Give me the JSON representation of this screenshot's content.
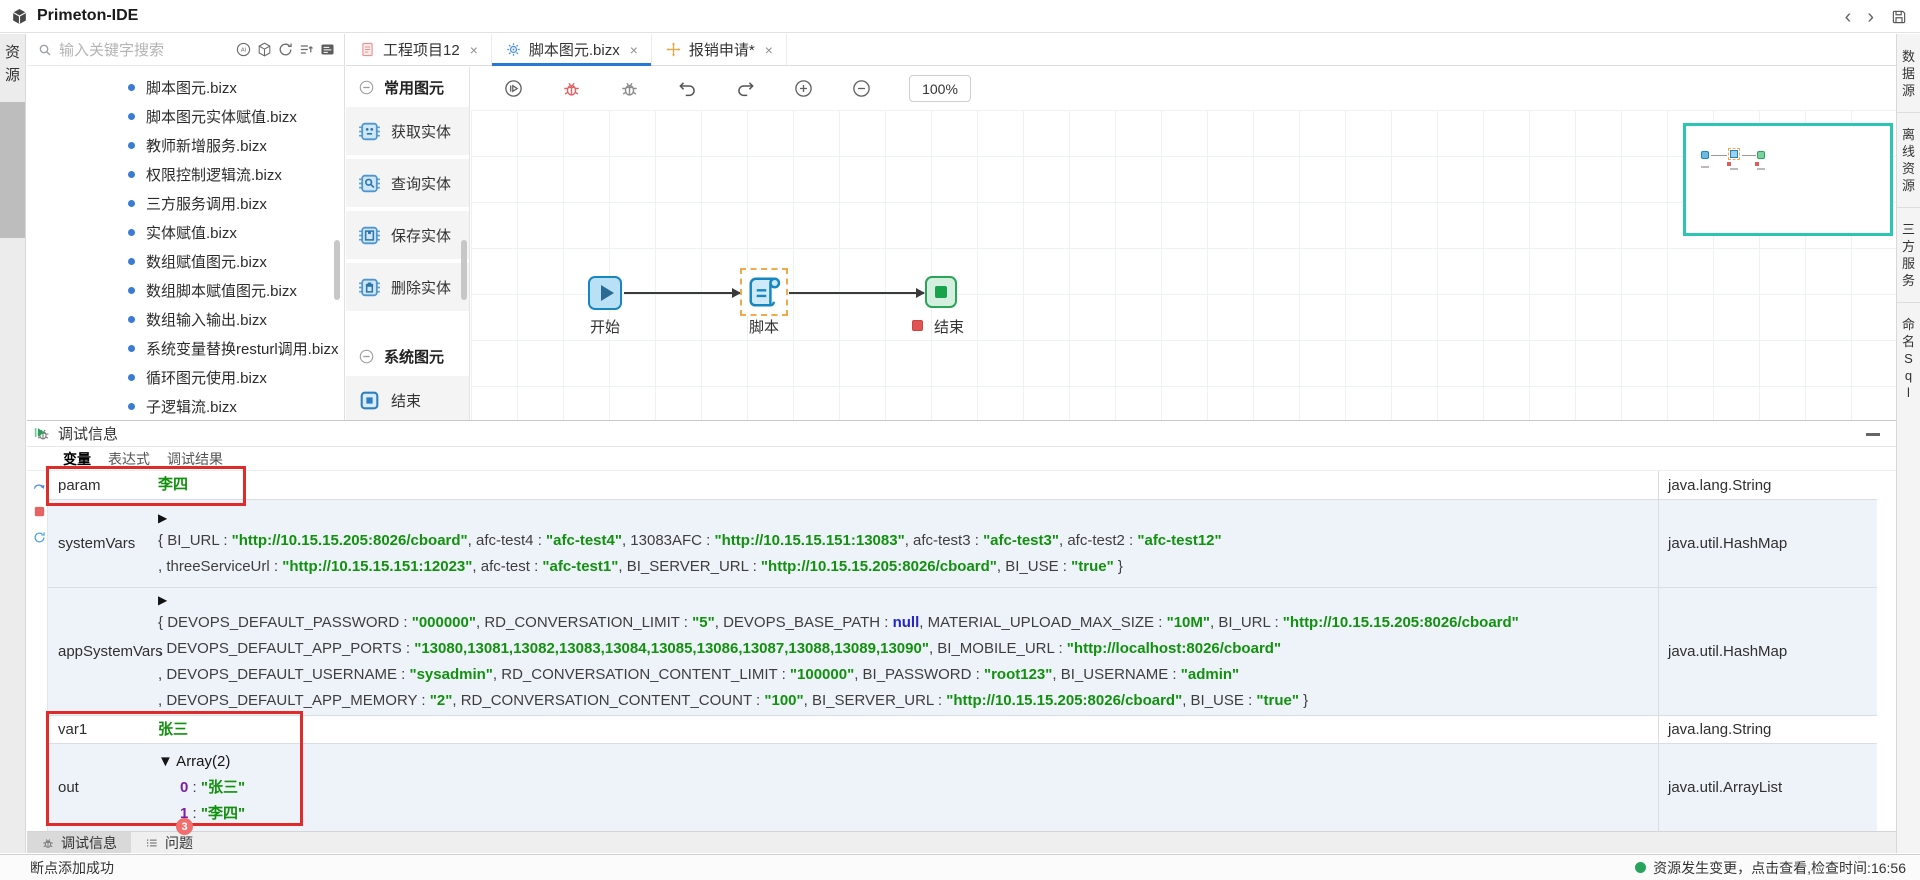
{
  "window": {
    "title": "Primeton-IDE",
    "back_glyph": "‹",
    "forward_glyph": "›"
  },
  "left_rail": {
    "label": "资源"
  },
  "right_rail": {
    "items": [
      "数据源",
      "离线资源",
      "三方服务",
      "命名Sql"
    ]
  },
  "explorer": {
    "search_placeholder": "输入关键字搜索",
    "tool_icons": [
      "ai",
      "cube",
      "refresh",
      "sort",
      "card"
    ],
    "files": [
      "脚本图元.bizx",
      "脚本图元实体赋值.bizx",
      "教师新增服务.bizx",
      "权限控制逻辑流.bizx",
      "三方服务调用.bizx",
      "实体赋值.bizx",
      "数组赋值图元.bizx",
      "数组脚本赋值图元.bizx",
      "数组输入输出.bizx",
      "系统变量替换resturl调用.bizx",
      "循环图元使用.bizx",
      "子逻辑流.bizx"
    ]
  },
  "tabs": [
    {
      "label": "工程项目12",
      "icon": "doc",
      "close": "×",
      "active": false
    },
    {
      "label": "脚本图元.bizx",
      "icon": "gear",
      "close": "×",
      "active": true
    },
    {
      "label": "报销申请*",
      "icon": "move",
      "close": "×",
      "active": false
    }
  ],
  "palette": {
    "sections": [
      {
        "title": "常用图元",
        "items": [
          {
            "label": "获取实体",
            "icon": "chipface"
          },
          {
            "label": "查询实体",
            "icon": "chipsearch"
          },
          {
            "label": "保存实体",
            "icon": "chipsave"
          },
          {
            "label": "删除实体",
            "icon": "chipdelete"
          }
        ]
      },
      {
        "title": "系统图元",
        "items": [
          {
            "label": "结束",
            "icon": "endsq"
          }
        ]
      }
    ]
  },
  "canvas": {
    "toolbar_icons": [
      "run",
      "debug-run",
      "step-debug",
      "undo",
      "redo",
      "zoom-in",
      "zoom-out"
    ],
    "zoom_level": "100%",
    "nodes": [
      {
        "label": "开始"
      },
      {
        "label": "脚本"
      },
      {
        "label": "结束"
      }
    ]
  },
  "debug": {
    "title": "调试信息",
    "tabs": [
      "变量",
      "表达式",
      "调试结果"
    ],
    "active_tab": "变量",
    "rows": [
      {
        "name": "param",
        "type": "java.lang.String",
        "lines": [
          {
            "seg": [
              {
                "c": "v",
                "t": "李四"
              }
            ]
          }
        ]
      },
      {
        "name": "systemVars",
        "type": "java.util.HashMap",
        "exp": "▶",
        "lines": [
          {
            "seg": [
              {
                "c": "p",
                "t": "{ "
              },
              {
                "c": "k",
                "t": "BI_URL : "
              },
              {
                "c": "v",
                "t": "\"http://10.15.15.205:8026/cboard\""
              },
              {
                "c": "p",
                "t": ",  "
              },
              {
                "c": "k",
                "t": "afc-test4 : "
              },
              {
                "c": "v",
                "t": "\"afc-test4\""
              },
              {
                "c": "p",
                "t": ",  "
              },
              {
                "c": "k",
                "t": "13083AFC : "
              },
              {
                "c": "v",
                "t": "\"http://10.15.15.151:13083\""
              },
              {
                "c": "p",
                "t": ",  "
              },
              {
                "c": "k",
                "t": "afc-test3 : "
              },
              {
                "c": "v",
                "t": "\"afc-test3\""
              },
              {
                "c": "p",
                "t": ",  "
              },
              {
                "c": "k",
                "t": "afc-test2 : "
              },
              {
                "c": "v",
                "t": "\"afc-test12\""
              }
            ]
          },
          {
            "seg": [
              {
                "c": "p",
                "t": ",  "
              },
              {
                "c": "k",
                "t": "threeServiceUrl : "
              },
              {
                "c": "v",
                "t": "\"http://10.15.15.151:12023\""
              },
              {
                "c": "p",
                "t": ",  "
              },
              {
                "c": "k",
                "t": "afc-test : "
              },
              {
                "c": "v",
                "t": "\"afc-test1\""
              },
              {
                "c": "p",
                "t": ",  "
              },
              {
                "c": "k",
                "t": "BI_SERVER_URL : "
              },
              {
                "c": "v",
                "t": "\"http://10.15.15.205:8026/cboard\""
              },
              {
                "c": "p",
                "t": ",  "
              },
              {
                "c": "k",
                "t": "BI_USE : "
              },
              {
                "c": "v",
                "t": "\"true\""
              },
              {
                "c": "p",
                "t": " }"
              }
            ]
          }
        ]
      },
      {
        "name": "appSystemVars",
        "type": "java.util.HashMap",
        "exp": "▶",
        "lines": [
          {
            "seg": [
              {
                "c": "p",
                "t": "{ "
              },
              {
                "c": "k",
                "t": "DEVOPS_DEFAULT_PASSWORD : "
              },
              {
                "c": "v",
                "t": "\"000000\""
              },
              {
                "c": "p",
                "t": ",  "
              },
              {
                "c": "k",
                "t": "RD_CONVERSATION_LIMIT : "
              },
              {
                "c": "v",
                "t": "\"5\""
              },
              {
                "c": "p",
                "t": ",  "
              },
              {
                "c": "k",
                "t": "DEVOPS_BASE_PATH : "
              },
              {
                "c": "n",
                "t": "null"
              },
              {
                "c": "p",
                "t": ",  "
              },
              {
                "c": "k",
                "t": "MATERIAL_UPLOAD_MAX_SIZE : "
              },
              {
                "c": "v",
                "t": "\"10M\""
              },
              {
                "c": "p",
                "t": ",  "
              },
              {
                "c": "k",
                "t": "BI_URL : "
              },
              {
                "c": "v",
                "t": "\"http://10.15.15.205:8026/cboard\""
              }
            ]
          },
          {
            "seg": [
              {
                "c": "p",
                "t": ",  "
              },
              {
                "c": "k",
                "t": "DEVOPS_DEFAULT_APP_PORTS : "
              },
              {
                "c": "v",
                "t": "\"13080,13081,13082,13083,13084,13085,13086,13087,13088,13089,13090\""
              },
              {
                "c": "p",
                "t": ",  "
              },
              {
                "c": "k",
                "t": "BI_MOBILE_URL : "
              },
              {
                "c": "v",
                "t": "\"http://localhost:8026/cboard\""
              }
            ]
          },
          {
            "seg": [
              {
                "c": "p",
                "t": ",  "
              },
              {
                "c": "k",
                "t": "DEVOPS_DEFAULT_USERNAME : "
              },
              {
                "c": "v",
                "t": "\"sysadmin\""
              },
              {
                "c": "p",
                "t": ",  "
              },
              {
                "c": "k",
                "t": "RD_CONVERSATION_CONTENT_LIMIT : "
              },
              {
                "c": "v",
                "t": "\"100000\""
              },
              {
                "c": "p",
                "t": ",  "
              },
              {
                "c": "k",
                "t": "BI_PASSWORD : "
              },
              {
                "c": "v",
                "t": "\"root123\""
              },
              {
                "c": "p",
                "t": ",  "
              },
              {
                "c": "k",
                "t": "BI_USERNAME : "
              },
              {
                "c": "v",
                "t": "\"admin\""
              }
            ]
          },
          {
            "seg": [
              {
                "c": "p",
                "t": ",  "
              },
              {
                "c": "k",
                "t": "DEVOPS_DEFAULT_APP_MEMORY : "
              },
              {
                "c": "v",
                "t": "\"2\""
              },
              {
                "c": "p",
                "t": ",  "
              },
              {
                "c": "k",
                "t": "RD_CONVERSATION_CONTENT_COUNT : "
              },
              {
                "c": "v",
                "t": "\"100\""
              },
              {
                "c": "p",
                "t": ",  "
              },
              {
                "c": "k",
                "t": "BI_SERVER_URL : "
              },
              {
                "c": "v",
                "t": "\"http://10.15.15.205:8026/cboard\""
              },
              {
                "c": "p",
                "t": ",  "
              },
              {
                "c": "k",
                "t": "BI_USE : "
              },
              {
                "c": "v",
                "t": "\"true\""
              },
              {
                "c": "p",
                "t": " }"
              }
            ]
          }
        ]
      },
      {
        "name": "var1",
        "type": "java.lang.String",
        "lines": [
          {
            "seg": [
              {
                "c": "v",
                "t": "张三"
              }
            ]
          }
        ]
      },
      {
        "name": "out",
        "type": "java.util.ArrayList",
        "lines": [
          {
            "seg": [
              {
                "c": "x",
                "t": "▼ Array(2)"
              }
            ]
          },
          {
            "ind": 1,
            "seg": [
              {
                "c": "i",
                "t": "0"
              },
              {
                "c": "p",
                "t": " : "
              },
              {
                "c": "v",
                "t": "\"张三\""
              }
            ]
          },
          {
            "ind": 1,
            "seg": [
              {
                "c": "i",
                "t": "1"
              },
              {
                "c": "p",
                "t": " : "
              },
              {
                "c": "v",
                "t": "\"李四\""
              }
            ]
          }
        ]
      }
    ]
  },
  "bottom_tabs": [
    {
      "label": "调试信息",
      "icon": "dbg",
      "active": true
    },
    {
      "label": "问题",
      "icon": "problems",
      "active": false,
      "badge": "3"
    }
  ],
  "status": {
    "left": "断点添加成功",
    "right": "资源发生变更，点击查看,检查时间:16:56"
  }
}
